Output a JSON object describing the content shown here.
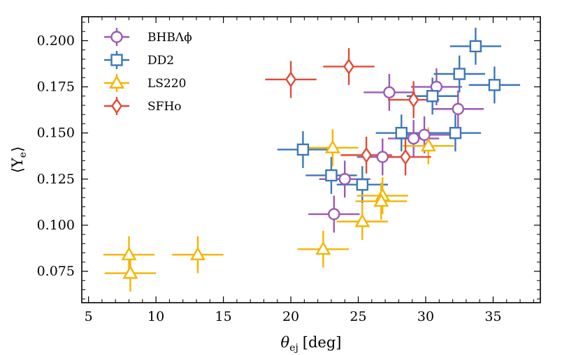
{
  "chart_data": {
    "type": "scatter",
    "xlabel_symbol": "θ",
    "xlabel_sub": "ej",
    "xlabel_unit": "[deg]",
    "ylabel": "⟨Y",
    "ylabel_sub": "e",
    "ylabel_end": "⟩",
    "xlim": [
      4.5,
      38.5
    ],
    "ylim": [
      0.058,
      0.213
    ],
    "xticks": [
      5,
      10,
      15,
      20,
      25,
      30,
      35
    ],
    "yticks": [
      0.075,
      0.1,
      0.125,
      0.15,
      0.175,
      0.2
    ],
    "xtick_labels": [
      "5",
      "10",
      "15",
      "20",
      "25",
      "30",
      "35"
    ],
    "ytick_labels": [
      "0.075",
      "0.100",
      "0.125",
      "0.150",
      "0.175",
      "0.200"
    ],
    "legend_position": "top-left",
    "series": [
      {
        "name": "BHBΛϕ",
        "color": "#9b59b6",
        "marker": "circle",
        "points": [
          {
            "x": 27.3,
            "y": 0.172,
            "xerr": 1.9,
            "yerr": 0.01
          },
          {
            "x": 30.8,
            "y": 0.175,
            "xerr": 1.9,
            "yerr": 0.01
          },
          {
            "x": 32.4,
            "y": 0.163,
            "xerr": 1.9,
            "yerr": 0.01
          },
          {
            "x": 29.1,
            "y": 0.147,
            "xerr": 1.9,
            "yerr": 0.01
          },
          {
            "x": 29.9,
            "y": 0.149,
            "xerr": 1.9,
            "yerr": 0.01
          },
          {
            "x": 26.8,
            "y": 0.137,
            "xerr": 1.9,
            "yerr": 0.01
          },
          {
            "x": 24.0,
            "y": 0.125,
            "xerr": 1.9,
            "yerr": 0.01
          },
          {
            "x": 23.2,
            "y": 0.106,
            "xerr": 1.9,
            "yerr": 0.01
          }
        ]
      },
      {
        "name": "DD2",
        "color": "#3a78b8",
        "marker": "square",
        "points": [
          {
            "x": 33.7,
            "y": 0.197,
            "xerr": 1.9,
            "yerr": 0.01
          },
          {
            "x": 32.5,
            "y": 0.182,
            "xerr": 1.9,
            "yerr": 0.01
          },
          {
            "x": 35.1,
            "y": 0.176,
            "xerr": 1.9,
            "yerr": 0.01
          },
          {
            "x": 30.5,
            "y": 0.17,
            "xerr": 1.9,
            "yerr": 0.01
          },
          {
            "x": 28.2,
            "y": 0.15,
            "xerr": 1.9,
            "yerr": 0.01
          },
          {
            "x": 32.2,
            "y": 0.15,
            "xerr": 1.9,
            "yerr": 0.01
          },
          {
            "x": 20.9,
            "y": 0.141,
            "xerr": 1.9,
            "yerr": 0.01
          },
          {
            "x": 23.0,
            "y": 0.127,
            "xerr": 1.9,
            "yerr": 0.01
          },
          {
            "x": 25.3,
            "y": 0.122,
            "xerr": 1.9,
            "yerr": 0.01
          }
        ]
      },
      {
        "name": "LS220",
        "color": "#f5b400",
        "marker": "triangle",
        "points": [
          {
            "x": 23.1,
            "y": 0.142,
            "xerr": 1.9,
            "yerr": 0.01
          },
          {
            "x": 30.2,
            "y": 0.143,
            "xerr": 1.9,
            "yerr": 0.01
          },
          {
            "x": 26.8,
            "y": 0.116,
            "xerr": 1.9,
            "yerr": 0.01
          },
          {
            "x": 26.7,
            "y": 0.113,
            "xerr": 1.9,
            "yerr": 0.01
          },
          {
            "x": 25.3,
            "y": 0.102,
            "xerr": 1.9,
            "yerr": 0.01
          },
          {
            "x": 22.4,
            "y": 0.087,
            "xerr": 1.9,
            "yerr": 0.01
          },
          {
            "x": 8.0,
            "y": 0.084,
            "xerr": 1.9,
            "yerr": 0.01
          },
          {
            "x": 13.1,
            "y": 0.084,
            "xerr": 1.9,
            "yerr": 0.01
          },
          {
            "x": 8.1,
            "y": 0.074,
            "xerr": 1.9,
            "yerr": 0.01
          }
        ]
      },
      {
        "name": "SFHo",
        "color": "#e04b35",
        "marker": "diamond",
        "points": [
          {
            "x": 20.0,
            "y": 0.179,
            "xerr": 1.9,
            "yerr": 0.01
          },
          {
            "x": 24.3,
            "y": 0.186,
            "xerr": 1.9,
            "yerr": 0.01
          },
          {
            "x": 29.1,
            "y": 0.168,
            "xerr": 1.9,
            "yerr": 0.01
          },
          {
            "x": 25.6,
            "y": 0.138,
            "xerr": 1.9,
            "yerr": 0.01
          },
          {
            "x": 28.5,
            "y": 0.137,
            "xerr": 1.9,
            "yerr": 0.01
          }
        ]
      }
    ]
  }
}
